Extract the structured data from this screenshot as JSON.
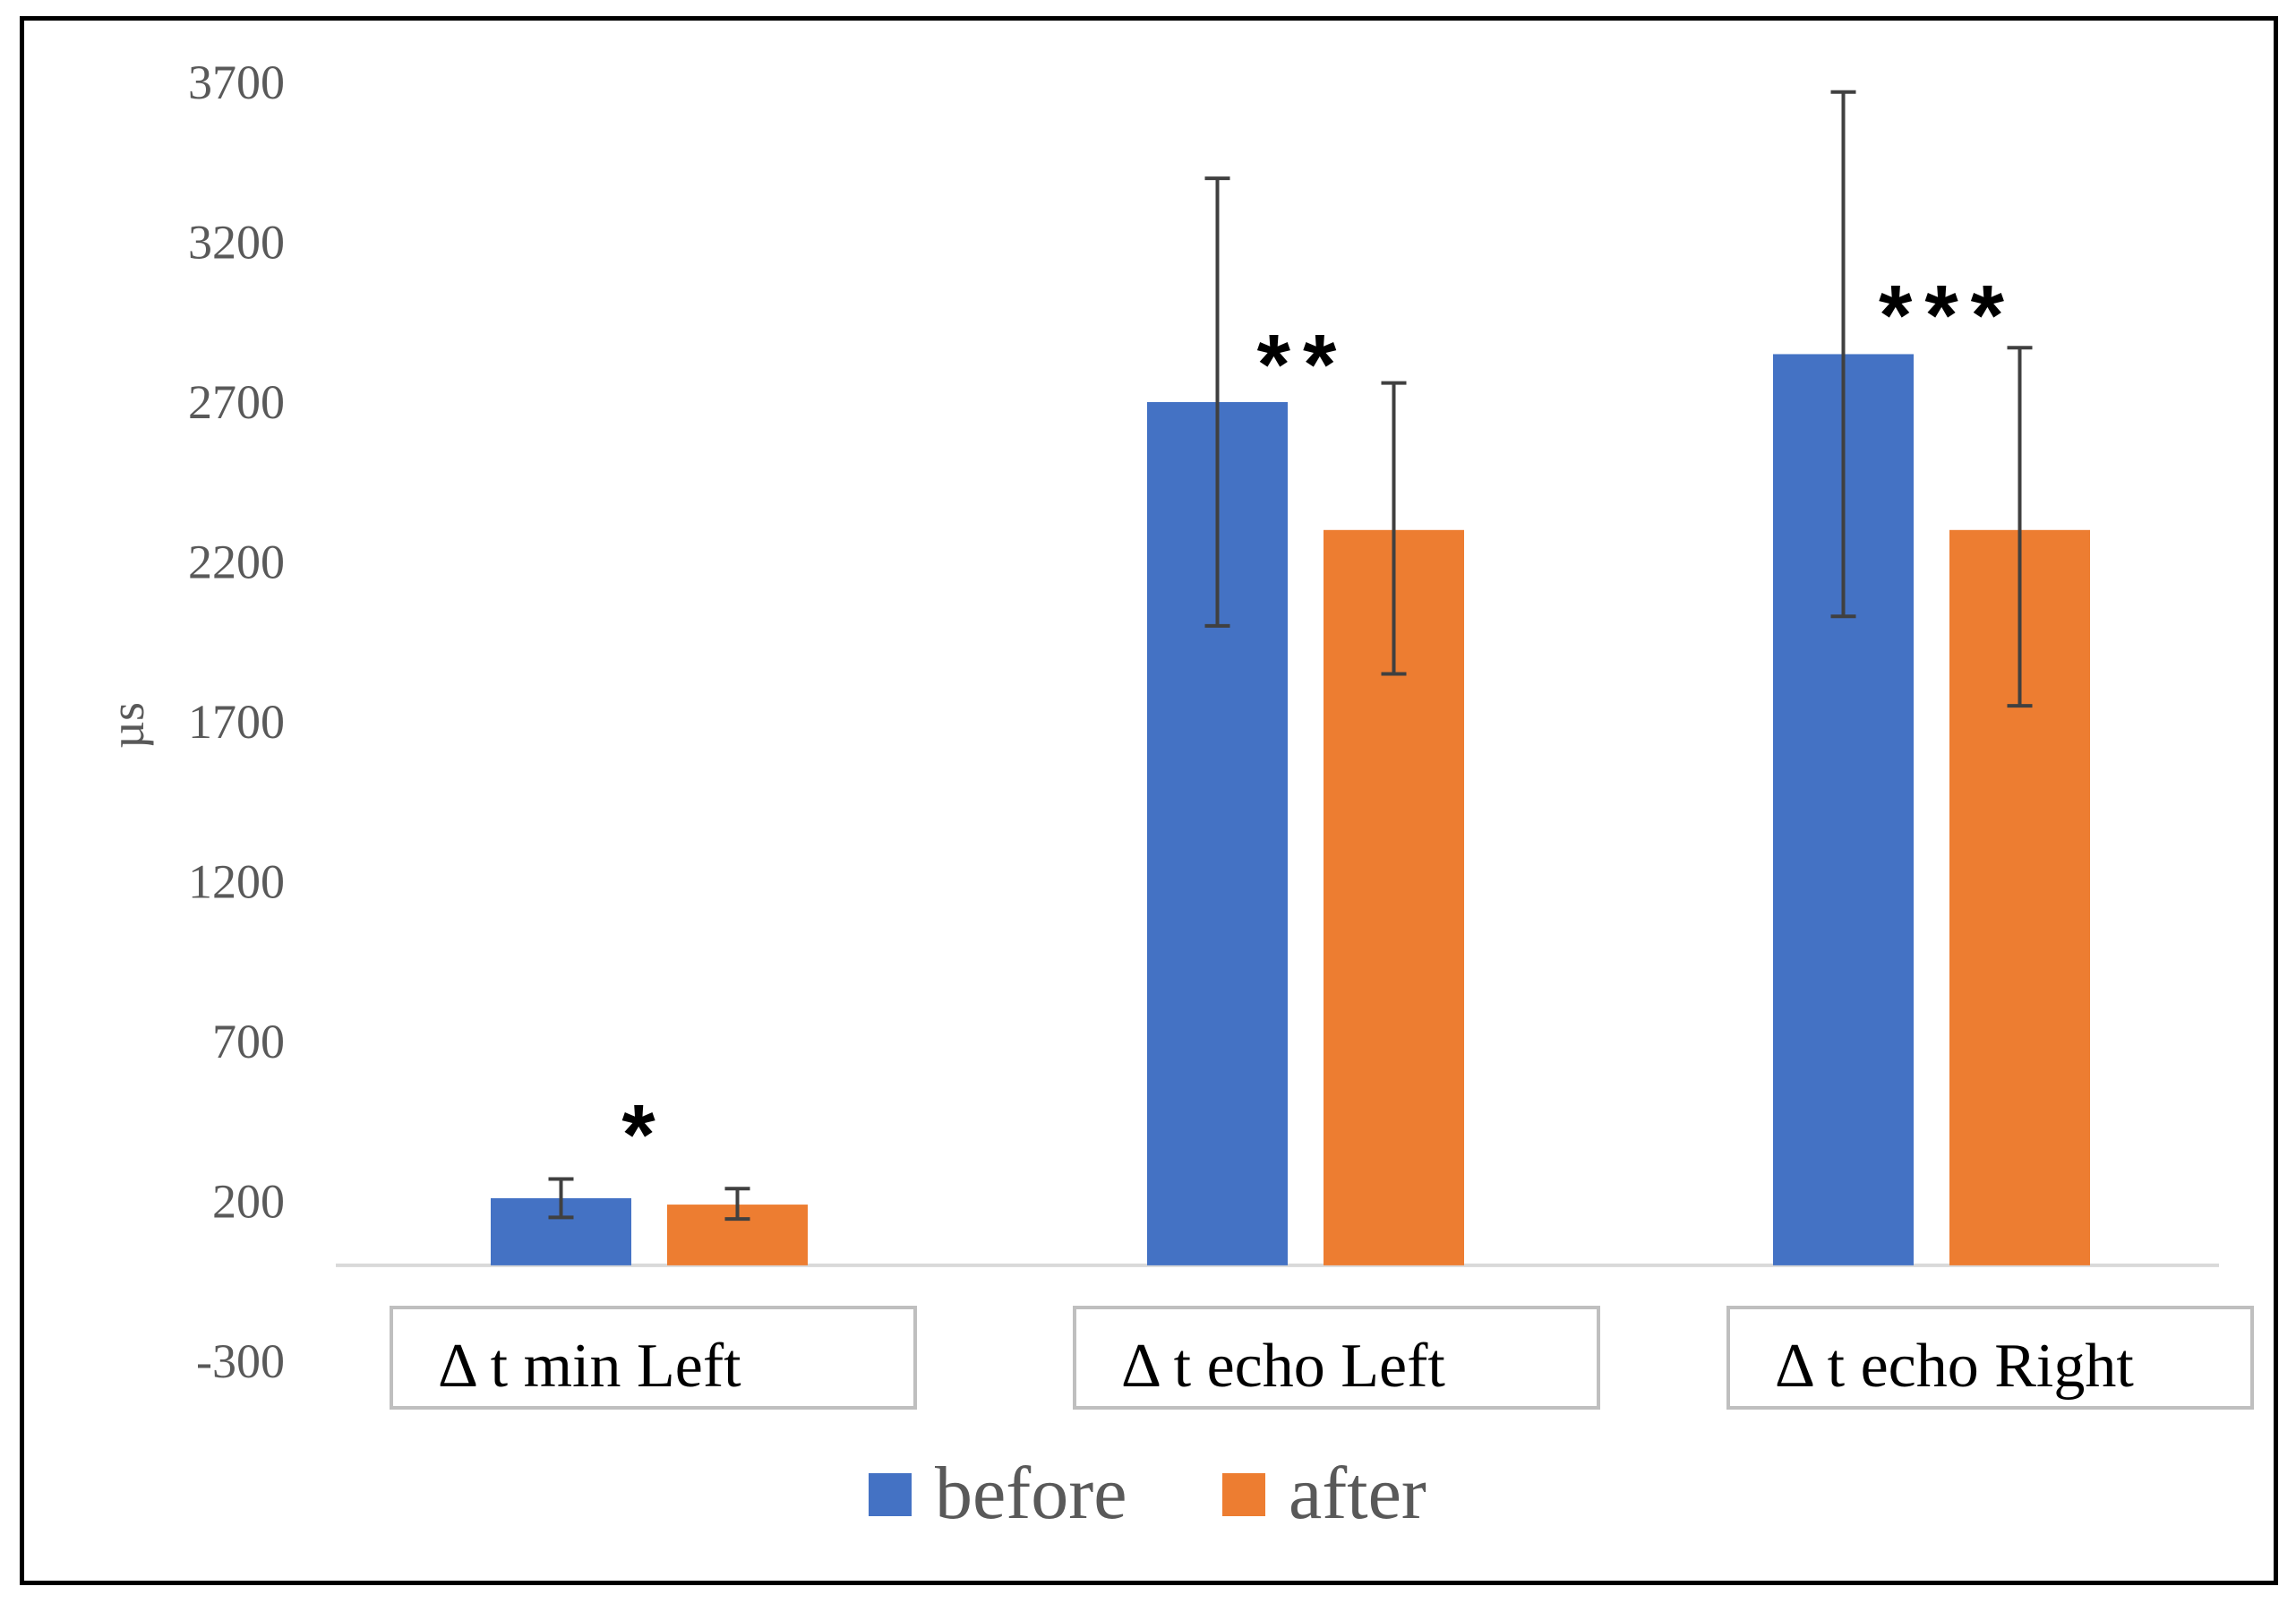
{
  "chart_data": {
    "type": "bar",
    "title": "",
    "xlabel": "",
    "ylabel": "µs",
    "ylim": [
      -300,
      3700
    ],
    "yticks": [
      -300,
      200,
      700,
      1200,
      1700,
      2200,
      2700,
      3200,
      3700
    ],
    "categories": [
      "Δ t min Left",
      "Δ t echo Left",
      "Δ t echo Right"
    ],
    "series": [
      {
        "name": "before",
        "color": "#4472C4",
        "values": [
          210,
          2700,
          2850
        ],
        "error_low": [
          150,
          2000,
          2030
        ],
        "error_high": [
          270,
          3400,
          3670
        ]
      },
      {
        "name": "after",
        "color": "#ED7D31",
        "values": [
          190,
          2300,
          2300
        ],
        "error_low": [
          145,
          1850,
          1750
        ],
        "error_high": [
          240,
          2760,
          2870
        ]
      }
    ],
    "annotations": [
      "*",
      "**",
      "***"
    ],
    "legend_position": "bottom",
    "grid": false
  }
}
